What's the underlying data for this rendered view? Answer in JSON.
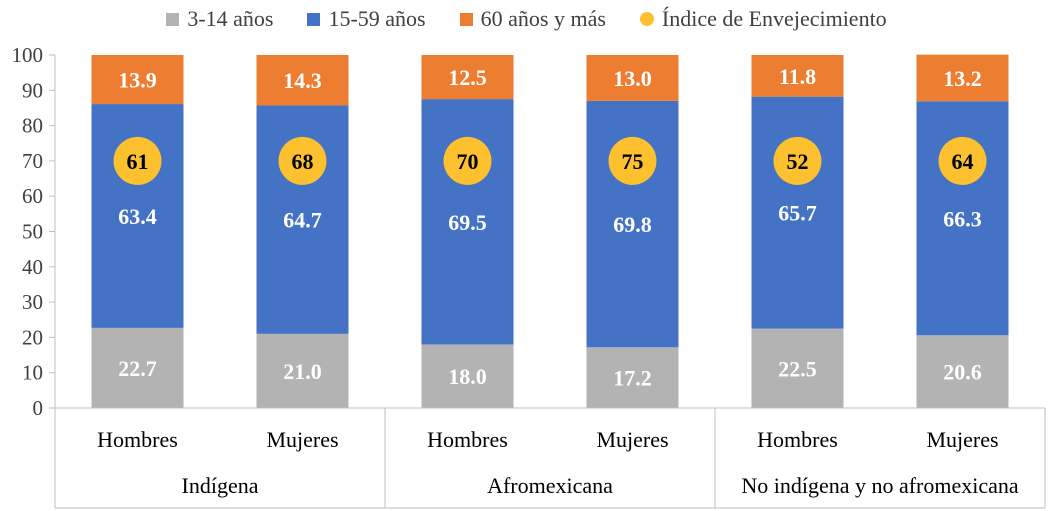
{
  "colors": {
    "young": "#b3b3b3",
    "adult": "#4472c4",
    "old": "#ed7d31",
    "index": "#fdc02f",
    "axis_text": "#404040",
    "grid": "#d9d9d9"
  },
  "chart_data": {
    "type": "bar",
    "stacked": true,
    "y_axis": {
      "min": 0,
      "max": 100,
      "ticks": [
        "0",
        "10",
        "20",
        "30",
        "40",
        "50",
        "60",
        "70",
        "80",
        "90",
        "100"
      ]
    },
    "groups": [
      {
        "label": "Indígena",
        "categories": [
          "Hombres",
          "Mujeres"
        ]
      },
      {
        "label": "Afromexicana",
        "categories": [
          "Hombres",
          "Mujeres"
        ]
      },
      {
        "label": "No indígena y no afromexicana",
        "categories": [
          "Hombres",
          "Mujeres"
        ]
      }
    ],
    "series": [
      {
        "name": "3-14 años",
        "values": [
          22.7,
          21.0,
          18.0,
          17.2,
          22.5,
          20.6
        ],
        "labels": [
          "22.7",
          "21.0",
          "18.0",
          "17.2",
          "22.5",
          "20.6"
        ]
      },
      {
        "name": "15-59 años",
        "values": [
          63.4,
          64.7,
          69.5,
          69.8,
          65.7,
          66.3
        ],
        "labels": [
          "63.4",
          "64.7",
          "69.5",
          "69.8",
          "65.7",
          "66.3"
        ]
      },
      {
        "name": "60 años y más",
        "values": [
          13.9,
          14.3,
          12.5,
          13.0,
          11.8,
          13.2
        ],
        "labels": [
          "13.9",
          "14.3",
          "12.5",
          "13.0",
          "11.8",
          "13.2"
        ]
      }
    ],
    "index_series": {
      "name": "Índice de Envejecimiento",
      "values": [
        61,
        68,
        70,
        75,
        52,
        64
      ],
      "labels": [
        "61",
        "68",
        "70",
        "75",
        "52",
        "64"
      ],
      "plotted_at": 70
    }
  }
}
